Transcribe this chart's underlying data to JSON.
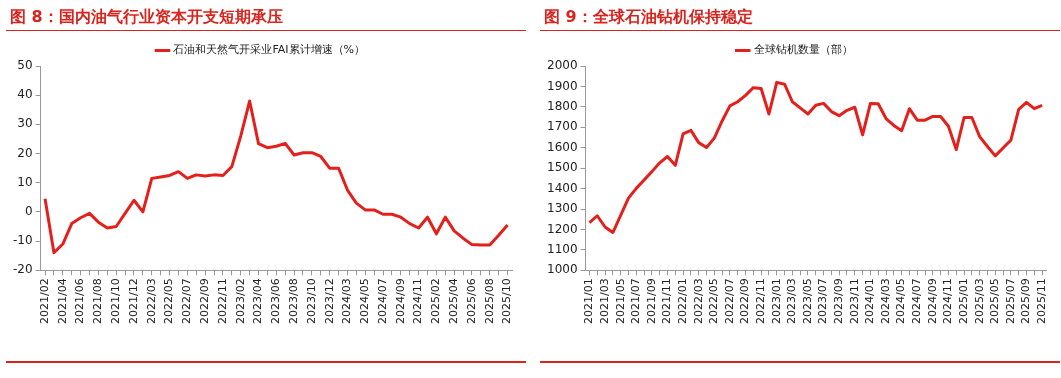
{
  "chart_data": [
    {
      "type": "line",
      "title": "图 8：国内油气行业资本开支短期承压",
      "categories": [
        "2021/02",
        null,
        "2021/04",
        null,
        "2021/06",
        null,
        "2021/08",
        null,
        "2021/10",
        null,
        "2021/12",
        null,
        "2022/03",
        null,
        "2022/05",
        null,
        "2022/07",
        null,
        "2022/09",
        null,
        "2022/11",
        null,
        "2023/02",
        null,
        "2023/04",
        null,
        "2023/06",
        null,
        "2023/08",
        null,
        "2023/10",
        null,
        "2023/12",
        null,
        "2024/03",
        null,
        "2024/05",
        null,
        "2024/07",
        null,
        "2024/09",
        null,
        "2024/11",
        null,
        "2025/02",
        null,
        "2025/04",
        null,
        "2025/06",
        null,
        "2025/08",
        null,
        "2025/10"
      ],
      "series": [
        {
          "name": "石油和天然气开采业FAI累计增速（%）",
          "color": "#e3201b",
          "values": [
            4.5,
            -14,
            -11,
            -4,
            -2,
            -0.5,
            -3.5,
            -5.5,
            -5,
            -0.5,
            4,
            0,
            11.5,
            12,
            12.5,
            13.8,
            11.5,
            12.7,
            12.3,
            12.7,
            12.5,
            15.5,
            26,
            38,
            23.4,
            22,
            22.5,
            23.5,
            19.5,
            20.3,
            20.3,
            19,
            15,
            15,
            7.5,
            3,
            0.7,
            0.7,
            -0.8,
            -0.8,
            -1.8,
            -4,
            -5.5,
            -1.8,
            -7.5,
            -1.8,
            -6.5,
            -9,
            -11.2,
            -11.3,
            -11.3,
            -8,
            -4.5
          ]
        }
      ],
      "ylim": [
        -20,
        50
      ],
      "yticks": [
        -20,
        -10,
        0,
        10,
        20,
        30,
        40,
        50
      ],
      "grid": false,
      "legend": "top",
      "marker": "none",
      "line_style": "solid"
    },
    {
      "type": "line",
      "title": "图 9：全球石油钻机保持稳定",
      "categories": [
        "2021/01",
        null,
        "2021/03",
        null,
        "2021/05",
        null,
        "2021/07",
        null,
        "2021/09",
        null,
        "2021/11",
        null,
        "2022/01",
        null,
        "2022/03",
        null,
        "2022/05",
        null,
        "2022/07",
        null,
        "2022/09",
        null,
        "2022/11",
        null,
        "2023/01",
        null,
        "2023/03",
        null,
        "2023/05",
        null,
        "2023/07",
        null,
        "2023/09",
        null,
        "2023/11",
        null,
        "2024/01",
        null,
        "2024/03",
        null,
        "2024/05",
        null,
        "2024/07",
        null,
        "2024/09",
        null,
        "2024/11",
        null,
        "2025/01",
        null,
        "2025/03",
        null,
        "2025/05",
        null,
        "2025/07",
        null,
        "2025/09",
        null,
        "2025/11"
      ],
      "series": [
        {
          "name": "全球钻机数量（部）",
          "color": "#e3201b",
          "values": [
            1233,
            1267,
            1212,
            1185,
            1269,
            1353,
            1401,
            1442,
            1483,
            1526,
            1557,
            1514,
            1668,
            1685,
            1625,
            1601,
            1647,
            1731,
            1805,
            1825,
            1856,
            1894,
            1890,
            1765,
            1920,
            1911,
            1825,
            1795,
            1765,
            1808,
            1817,
            1777,
            1757,
            1783,
            1798,
            1663,
            1817,
            1815,
            1743,
            1709,
            1683,
            1791,
            1735,
            1735,
            1753,
            1753,
            1705,
            1591,
            1748,
            1748,
            1654,
            1606,
            1560,
            1599,
            1637,
            1788,
            1822,
            1791,
            1807
          ]
        }
      ],
      "ylim": [
        1000,
        2000
      ],
      "yticks": [
        1000,
        1100,
        1200,
        1300,
        1400,
        1500,
        1600,
        1700,
        1800,
        1900,
        2000
      ],
      "grid": false,
      "legend": "top",
      "marker": "none",
      "line_style": "solid"
    }
  ]
}
